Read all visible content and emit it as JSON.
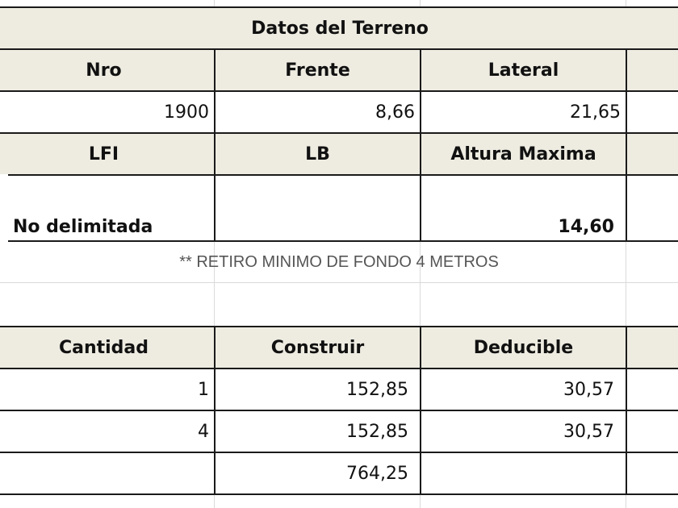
{
  "terreno": {
    "title": "Datos del Terreno",
    "headers": [
      "Nro",
      "Frente",
      "Lateral"
    ],
    "values": [
      "1900",
      "8,66",
      "21,65"
    ],
    "headers2": [
      "LFI",
      "LB",
      "Altura Maxima"
    ],
    "lfi": "No delimitada",
    "altura_maxima": "14,60"
  },
  "note": "** RETIRO MINIMO DE FONDO 4 METROS",
  "calculo": {
    "headers": [
      "Cantidad",
      "Construir",
      "Deducible"
    ],
    "rows": [
      [
        "1",
        "152,85",
        "30,57"
      ],
      [
        "4",
        "152,85",
        "30,57"
      ]
    ],
    "total": "764,25"
  }
}
